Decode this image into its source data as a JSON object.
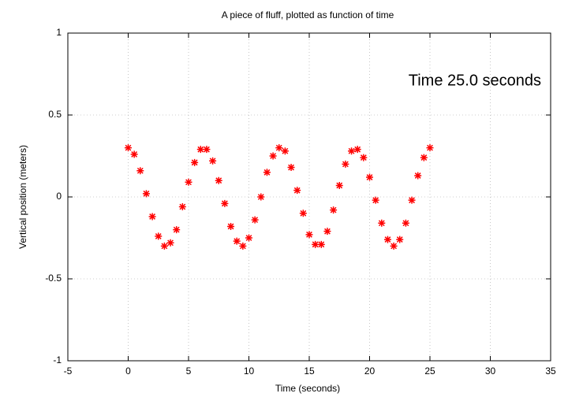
{
  "chart_data": {
    "type": "scatter",
    "title": "A piece of fluff, plotted as function of time",
    "annotation": "Time 25.0 seconds",
    "x_label": "Time (seconds)",
    "y_label": "Vertical position (meters)",
    "xlim": [
      -5,
      35
    ],
    "xticks": [
      -5,
      0,
      5,
      10,
      15,
      20,
      25,
      30,
      35
    ],
    "ylim": [
      -1,
      1
    ],
    "yticks": [
      -1,
      -0.5,
      0,
      0.5,
      1
    ],
    "grid": true,
    "series": [
      {
        "color": "#ff0000",
        "x": [
          0,
          0.5,
          1,
          1.5,
          2,
          2.5,
          3,
          3.5,
          4,
          4.5,
          5,
          5.5,
          6,
          6.5,
          7,
          7.5,
          8,
          8.5,
          9,
          9.5,
          10,
          10.5,
          11,
          11.5,
          12,
          12.5,
          13,
          13.5,
          14,
          14.5,
          15,
          15.5,
          16,
          16.5,
          17,
          17.5,
          18,
          18.5,
          19,
          19.5,
          20,
          20.5,
          21,
          21.5,
          22,
          22.5,
          23,
          23.5,
          24,
          24.5,
          25
        ],
        "values": [
          0.3,
          0.26,
          0.16,
          0.02,
          -0.12,
          -0.24,
          -0.3,
          -0.28,
          -0.2,
          -0.06,
          0.09,
          0.21,
          0.29,
          0.29,
          0.22,
          0.1,
          -0.04,
          -0.18,
          -0.27,
          -0.3,
          -0.25,
          -0.14,
          0.0,
          0.15,
          0.25,
          0.3,
          0.28,
          0.18,
          0.04,
          -0.1,
          -0.23,
          -0.29,
          -0.29,
          -0.21,
          -0.08,
          0.07,
          0.2,
          0.28,
          0.29,
          0.24,
          0.12,
          -0.02,
          -0.16,
          -0.26,
          -0.3,
          -0.26,
          -0.16,
          -0.02,
          0.13,
          0.24,
          0.3
        ]
      }
    ]
  }
}
